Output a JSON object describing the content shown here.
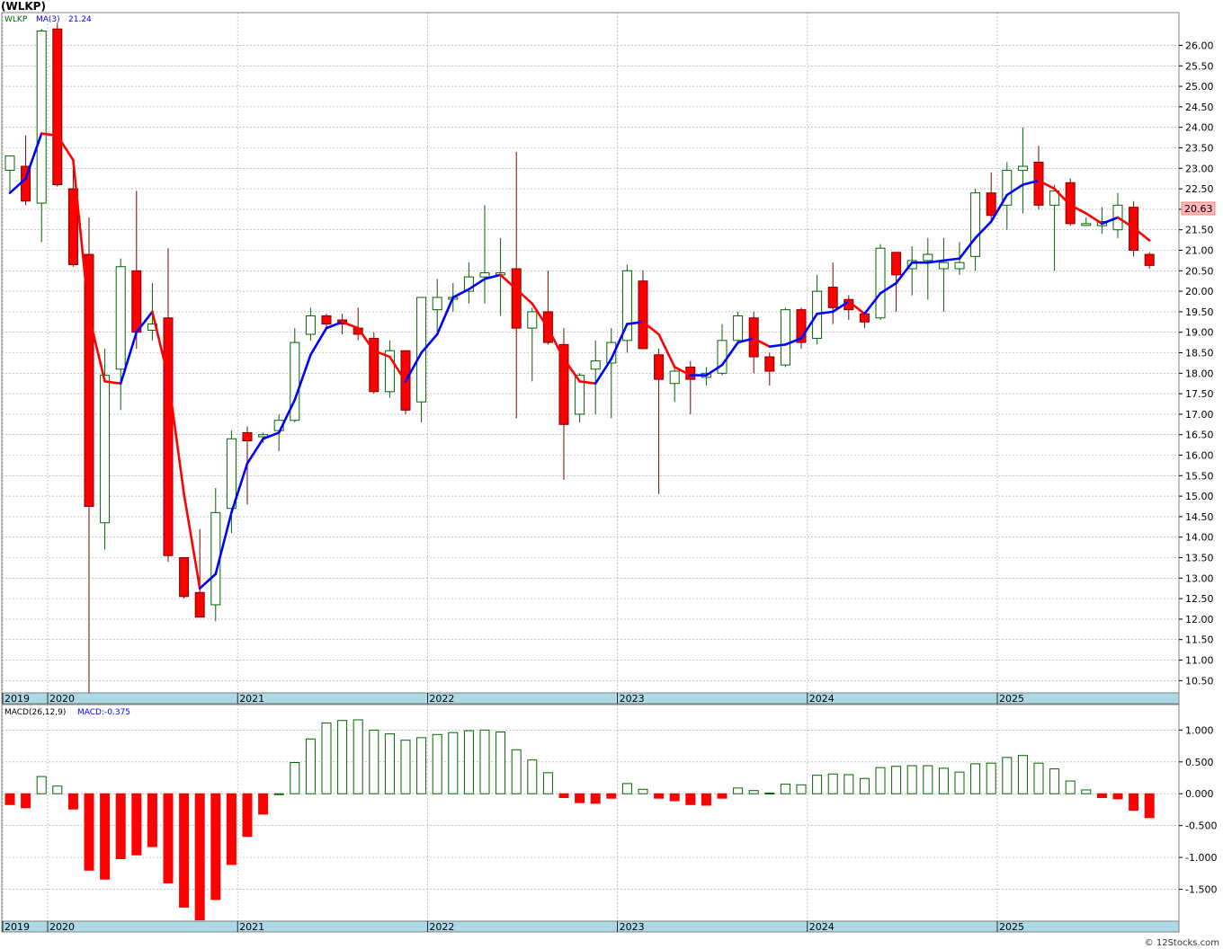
{
  "title": "(WLKP)",
  "watermark": "© 12Stocks.com",
  "colors": {
    "up_fill": "#ffffff",
    "up_stroke": "#006400",
    "down_fill": "#ff0000",
    "down_stroke": "#800000",
    "ma_up": "#0000ff",
    "ma_down": "#ff0000",
    "grid": "#a0a0a0",
    "axis_band": "#add8e6",
    "last_price_bg": "#ffb6b6"
  },
  "legend": {
    "symbol": "WLKP",
    "ma_label": "MA(3)",
    "ma_value": "21.24"
  },
  "last_price_label": "20.63",
  "chart_data": [
    {
      "type": "candlestick",
      "frequency": "monthly",
      "ylim": [
        10.2,
        26.8
      ],
      "yticks": [
        "10.50",
        "11.00",
        "11.50",
        "12.00",
        "12.50",
        "13.00",
        "13.50",
        "14.00",
        "14.50",
        "15.00",
        "15.50",
        "16.00",
        "16.50",
        "17.00",
        "17.50",
        "18.00",
        "18.50",
        "19.00",
        "19.50",
        "20.00",
        "20.50",
        "21.00",
        "21.50",
        "22.00",
        "22.50",
        "23.00",
        "23.50",
        "24.00",
        "24.50",
        "25.00",
        "25.50",
        "26.00"
      ],
      "year_labels": [
        "2019",
        "2020",
        "2021",
        "2022",
        "2023",
        "2024",
        "2025"
      ],
      "candles": [
        {
          "o": 22.95,
          "h": 23.3,
          "l": 22.4,
          "c": 23.3
        },
        {
          "o": 23.05,
          "h": 23.8,
          "l": 22.1,
          "c": 22.2
        },
        {
          "o": 22.15,
          "h": 26.4,
          "l": 21.2,
          "c": 26.35
        },
        {
          "o": 26.4,
          "h": 26.55,
          "l": 22.55,
          "c": 22.6
        },
        {
          "o": 22.5,
          "h": 23.0,
          "l": 20.6,
          "c": 20.65
        },
        {
          "o": 20.9,
          "h": 21.8,
          "l": 10.2,
          "c": 14.75
        },
        {
          "o": 14.35,
          "h": 18.6,
          "l": 13.7,
          "c": 17.95
        },
        {
          "o": 18.1,
          "h": 20.8,
          "l": 17.1,
          "c": 20.6
        },
        {
          "o": 20.5,
          "h": 22.45,
          "l": 18.6,
          "c": 19.0
        },
        {
          "o": 19.05,
          "h": 20.2,
          "l": 18.8,
          "c": 19.2
        },
        {
          "o": 19.35,
          "h": 21.05,
          "l": 13.4,
          "c": 13.55
        },
        {
          "o": 13.5,
          "h": 13.5,
          "l": 12.5,
          "c": 12.55
        },
        {
          "o": 12.65,
          "h": 14.2,
          "l": 12.05,
          "c": 12.05
        },
        {
          "o": 12.35,
          "h": 15.2,
          "l": 11.95,
          "c": 14.6
        },
        {
          "o": 14.7,
          "h": 16.6,
          "l": 14.1,
          "c": 16.4
        },
        {
          "o": 16.55,
          "h": 16.7,
          "l": 14.8,
          "c": 16.35
        },
        {
          "o": 16.45,
          "h": 16.55,
          "l": 16.3,
          "c": 16.5
        },
        {
          "o": 16.6,
          "h": 17.0,
          "l": 16.1,
          "c": 16.85
        },
        {
          "o": 16.85,
          "h": 19.1,
          "l": 16.8,
          "c": 18.75
        },
        {
          "o": 18.95,
          "h": 19.6,
          "l": 18.8,
          "c": 19.4
        },
        {
          "o": 19.4,
          "h": 19.45,
          "l": 19.1,
          "c": 19.2
        },
        {
          "o": 19.3,
          "h": 19.45,
          "l": 18.95,
          "c": 19.2
        },
        {
          "o": 19.1,
          "h": 19.6,
          "l": 18.8,
          "c": 18.95
        },
        {
          "o": 18.85,
          "h": 19.0,
          "l": 17.5,
          "c": 17.55
        },
        {
          "o": 17.55,
          "h": 18.8,
          "l": 17.4,
          "c": 18.55
        },
        {
          "o": 18.55,
          "h": 18.55,
          "l": 17.0,
          "c": 17.1
        },
        {
          "o": 17.3,
          "h": 19.8,
          "l": 16.8,
          "c": 19.85
        },
        {
          "o": 19.55,
          "h": 20.3,
          "l": 19.0,
          "c": 19.85
        },
        {
          "o": 19.85,
          "h": 20.2,
          "l": 19.5,
          "c": 19.85
        },
        {
          "o": 20.0,
          "h": 20.7,
          "l": 19.7,
          "c": 20.35
        },
        {
          "o": 20.35,
          "h": 22.1,
          "l": 19.7,
          "c": 20.45
        },
        {
          "o": 20.4,
          "h": 21.3,
          "l": 19.4,
          "c": 20.45
        },
        {
          "o": 20.55,
          "h": 23.4,
          "l": 16.9,
          "c": 19.1
        },
        {
          "o": 19.1,
          "h": 19.6,
          "l": 17.8,
          "c": 19.5
        },
        {
          "o": 19.5,
          "h": 20.5,
          "l": 18.7,
          "c": 18.75
        },
        {
          "o": 18.7,
          "h": 19.1,
          "l": 15.4,
          "c": 16.75
        },
        {
          "o": 17.0,
          "h": 18.0,
          "l": 16.8,
          "c": 17.95
        },
        {
          "o": 18.1,
          "h": 18.8,
          "l": 17.0,
          "c": 18.3
        },
        {
          "o": 18.25,
          "h": 19.1,
          "l": 16.9,
          "c": 18.75
        },
        {
          "o": 18.8,
          "h": 20.65,
          "l": 18.5,
          "c": 20.5
        },
        {
          "o": 20.25,
          "h": 20.5,
          "l": 18.6,
          "c": 18.6
        },
        {
          "o": 18.45,
          "h": 18.6,
          "l": 15.05,
          "c": 17.85
        },
        {
          "o": 17.75,
          "h": 18.2,
          "l": 17.3,
          "c": 18.05
        },
        {
          "o": 18.15,
          "h": 18.3,
          "l": 17.0,
          "c": 17.85
        },
        {
          "o": 17.9,
          "h": 18.15,
          "l": 17.7,
          "c": 18.0
        },
        {
          "o": 18.0,
          "h": 19.2,
          "l": 17.95,
          "c": 18.8
        },
        {
          "o": 18.8,
          "h": 19.5,
          "l": 18.7,
          "c": 19.4
        },
        {
          "o": 19.35,
          "h": 19.5,
          "l": 18.0,
          "c": 18.4
        },
        {
          "o": 18.4,
          "h": 18.5,
          "l": 17.7,
          "c": 18.05
        },
        {
          "o": 18.2,
          "h": 19.6,
          "l": 18.15,
          "c": 19.55
        },
        {
          "o": 19.55,
          "h": 19.6,
          "l": 18.6,
          "c": 18.75
        },
        {
          "o": 18.85,
          "h": 20.4,
          "l": 18.7,
          "c": 20.0
        },
        {
          "o": 20.1,
          "h": 20.7,
          "l": 19.2,
          "c": 19.6
        },
        {
          "o": 19.8,
          "h": 19.9,
          "l": 19.3,
          "c": 19.55
        },
        {
          "o": 19.45,
          "h": 19.5,
          "l": 19.1,
          "c": 19.25
        },
        {
          "o": 19.35,
          "h": 21.15,
          "l": 19.3,
          "c": 21.05
        },
        {
          "o": 20.95,
          "h": 20.95,
          "l": 19.5,
          "c": 20.4
        },
        {
          "o": 20.55,
          "h": 21.1,
          "l": 19.9,
          "c": 20.75
        },
        {
          "o": 20.75,
          "h": 21.3,
          "l": 19.8,
          "c": 20.9
        },
        {
          "o": 20.55,
          "h": 21.3,
          "l": 19.5,
          "c": 20.7
        },
        {
          "o": 20.55,
          "h": 21.2,
          "l": 20.4,
          "c": 20.7
        },
        {
          "o": 20.85,
          "h": 22.5,
          "l": 20.5,
          "c": 22.4
        },
        {
          "o": 22.4,
          "h": 22.9,
          "l": 21.7,
          "c": 21.85
        },
        {
          "o": 22.1,
          "h": 23.15,
          "l": 21.5,
          "c": 22.95
        },
        {
          "o": 22.95,
          "h": 24.0,
          "l": 21.9,
          "c": 23.05
        },
        {
          "o": 23.15,
          "h": 23.55,
          "l": 22.0,
          "c": 22.1
        },
        {
          "o": 22.1,
          "h": 22.6,
          "l": 20.5,
          "c": 22.45
        },
        {
          "o": 22.65,
          "h": 22.75,
          "l": 21.6,
          "c": 21.65
        },
        {
          "o": 21.65,
          "h": 21.8,
          "l": 21.6,
          "c": 21.65
        },
        {
          "o": 21.6,
          "h": 22.05,
          "l": 21.4,
          "c": 21.7
        },
        {
          "o": 21.5,
          "h": 22.4,
          "l": 21.3,
          "c": 22.1
        },
        {
          "o": 22.05,
          "h": 22.2,
          "l": 20.85,
          "c": 21.0
        },
        {
          "o": 20.9,
          "h": 20.95,
          "l": 20.55,
          "c": 20.63
        }
      ],
      "ma": [
        22.4,
        22.75,
        23.85,
        23.8,
        23.2,
        19.4,
        17.8,
        17.75,
        19.0,
        19.5,
        17.9,
        15.05,
        12.75,
        13.1,
        14.6,
        15.8,
        16.4,
        16.55,
        17.35,
        18.45,
        19.1,
        19.25,
        19.1,
        18.55,
        18.4,
        17.8,
        18.5,
        18.95,
        19.85,
        20.05,
        20.3,
        20.4,
        20.05,
        19.7,
        19.1,
        18.35,
        17.8,
        17.75,
        18.35,
        19.2,
        19.25,
        18.95,
        18.15,
        17.95,
        17.95,
        18.2,
        18.75,
        18.85,
        18.65,
        18.7,
        18.85,
        19.45,
        19.5,
        19.75,
        19.45,
        19.95,
        20.2,
        20.7,
        20.7,
        20.75,
        20.8,
        21.3,
        21.7,
        22.35,
        22.6,
        22.7,
        22.5,
        22.1,
        21.9,
        21.65,
        21.8,
        21.55,
        21.24
      ]
    },
    {
      "type": "bar",
      "name": "MACD(26,12,9)",
      "label": "MACD(26,12,9)",
      "value_label": "MACD:-0.375",
      "ylim": [
        -2.0,
        1.4
      ],
      "yticks": [
        "1.000",
        "0.500",
        "0.000",
        "-0.500",
        "-1.000",
        "-1.500"
      ],
      "values": [
        -0.17,
        -0.22,
        0.27,
        0.12,
        -0.24,
        -1.2,
        -1.34,
        -1.02,
        -0.96,
        -0.83,
        -1.4,
        -1.78,
        -1.98,
        -1.66,
        -1.11,
        -0.67,
        -0.32,
        0.0,
        0.49,
        0.86,
        1.11,
        1.15,
        1.16,
        1.0,
        0.94,
        0.84,
        0.88,
        0.93,
        0.96,
        0.99,
        1.0,
        0.97,
        0.69,
        0.53,
        0.33,
        -0.06,
        -0.14,
        -0.15,
        -0.07,
        0.16,
        0.07,
        -0.07,
        -0.11,
        -0.17,
        -0.18,
        -0.07,
        0.09,
        0.05,
        0.01,
        0.15,
        0.14,
        0.29,
        0.31,
        0.3,
        0.24,
        0.41,
        0.43,
        0.44,
        0.44,
        0.4,
        0.34,
        0.47,
        0.48,
        0.57,
        0.6,
        0.48,
        0.39,
        0.2,
        0.06,
        -0.06,
        -0.08,
        -0.26,
        -0.375
      ]
    }
  ]
}
